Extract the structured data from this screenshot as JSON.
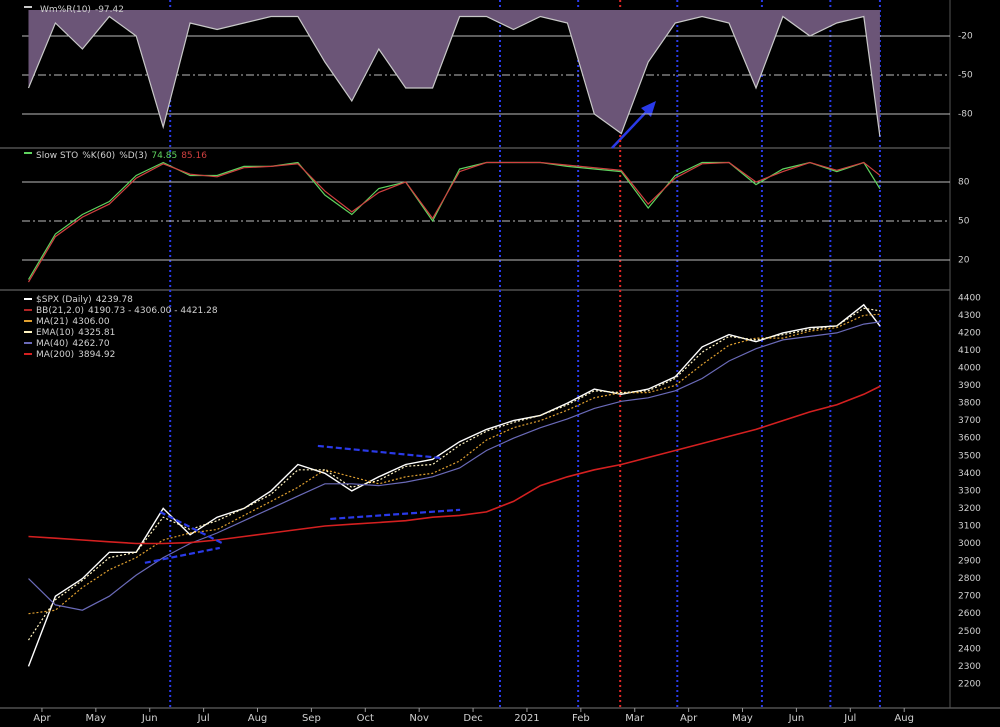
{
  "chart_data": [
    {
      "type": "line",
      "label": null,
      "x": [
        -0.25,
        0.25,
        0.75,
        1.25,
        1.75,
        2.25,
        2.75,
        3.25,
        3.75,
        4.25,
        4.75,
        5.25,
        5.75,
        6.25,
        6.75,
        7.25,
        7.75,
        8.25,
        8.75,
        9.25,
        9.75,
        10.25,
        10.75,
        11.25,
        11.75,
        12.25,
        12.75,
        13.25,
        13.75,
        14.25,
        14.75,
        15.25,
        15.55
      ],
      "series": [
        {
          "name": "Wm%R(10)",
          "color": "#c8c8c8",
          "fill": "#6b5577",
          "values": [
            -60,
            -10,
            -30,
            -5,
            -20,
            -90,
            -10,
            -15,
            -10,
            -5,
            -5,
            -40,
            -70,
            -30,
            -60,
            -60,
            -5,
            -5,
            -15,
            -5,
            -10,
            -80,
            -95,
            -40,
            -10,
            -5,
            -10,
            -60,
            -5,
            -20,
            -10,
            -5,
            -97.42
          ]
        }
      ],
      "ylim": [
        -100,
        0
      ],
      "yticks": [
        -20,
        -50,
        -80
      ],
      "grid": true,
      "grid_style": [
        "solid",
        "dashdot",
        "solid"
      ]
    },
    {
      "type": "line",
      "label": "Slow STO",
      "x": [
        -0.25,
        0.25,
        0.75,
        1.25,
        1.75,
        2.25,
        2.75,
        3.25,
        3.75,
        4.25,
        4.75,
        5.25,
        5.75,
        6.25,
        6.75,
        7.25,
        7.75,
        8.25,
        8.75,
        9.25,
        9.75,
        10.25,
        10.75,
        11.25,
        11.75,
        12.25,
        12.75,
        13.25,
        13.75,
        14.25,
        14.75,
        15.25,
        15.55
      ],
      "series": [
        {
          "name": "%K(60)",
          "color": "#5fd35f",
          "values": [
            5,
            40,
            55,
            65,
            85,
            95,
            85,
            85,
            92,
            92,
            95,
            70,
            55,
            75,
            80,
            50,
            90,
            95,
            95,
            95,
            92,
            90,
            88,
            60,
            85,
            95,
            95,
            78,
            90,
            95,
            88,
            95,
            74.85
          ]
        },
        {
          "name": "%D(3)",
          "color": "#d04040",
          "values": [
            3,
            38,
            53,
            63,
            83,
            94,
            86,
            84,
            91,
            92,
            94,
            73,
            57,
            72,
            80,
            52,
            88,
            95,
            95,
            95,
            93,
            91,
            89,
            63,
            83,
            94,
            95,
            80,
            88,
            95,
            89,
            95,
            85.16
          ]
        }
      ],
      "ylim": [
        0,
        100
      ],
      "yticks": [
        80,
        50,
        20
      ],
      "grid": true,
      "grid_style": [
        "solid",
        "dashdot",
        "solid"
      ]
    },
    {
      "type": "line",
      "label": null,
      "x": [
        -0.25,
        0.25,
        0.75,
        1.25,
        1.75,
        2.25,
        2.75,
        3.25,
        3.75,
        4.25,
        4.75,
        5.25,
        5.75,
        6.25,
        6.75,
        7.25,
        7.75,
        8.25,
        8.75,
        9.25,
        9.75,
        10.25,
        10.75,
        11.25,
        11.75,
        12.25,
        12.75,
        13.25,
        13.75,
        14.25,
        14.75,
        15.25,
        15.55
      ],
      "series": [
        {
          "name": "$SPX (Daily)",
          "color": "#ffffff",
          "width": 1.4,
          "values": [
            2300,
            2700,
            2800,
            2950,
            2950,
            3200,
            3050,
            3150,
            3200,
            3300,
            3450,
            3400,
            3300,
            3380,
            3450,
            3480,
            3580,
            3650,
            3700,
            3730,
            3800,
            3880,
            3850,
            3880,
            3950,
            4120,
            4190,
            4150,
            4200,
            4230,
            4240,
            4360,
            4239.78
          ]
        },
        {
          "name": "BB(21,2.0)",
          "color": "#b02525",
          "last_label": "4190.73 - 4306.00 - 4421.28"
        },
        {
          "name": "MA(21)",
          "color": "#e0a030",
          "style": "dotted",
          "last_label": "4306.00",
          "values": [
            2600,
            2620,
            2750,
            2850,
            2920,
            3020,
            3060,
            3080,
            3160,
            3240,
            3320,
            3420,
            3380,
            3340,
            3380,
            3400,
            3470,
            3590,
            3660,
            3700,
            3760,
            3830,
            3860,
            3860,
            3900,
            4020,
            4130,
            4170,
            4170,
            4210,
            4230,
            4300,
            4306
          ]
        },
        {
          "name": "EMA(10)",
          "color": "#fff3c0",
          "style": "dotted",
          "values": [
            2450,
            2680,
            2790,
            2920,
            2950,
            3150,
            3080,
            3130,
            3200,
            3280,
            3420,
            3420,
            3320,
            3360,
            3440,
            3450,
            3560,
            3640,
            3690,
            3730,
            3790,
            3870,
            3860,
            3870,
            3940,
            4090,
            4180,
            4160,
            4190,
            4220,
            4240,
            4340,
            4325.81
          ]
        },
        {
          "name": "MA(40)",
          "color": "#6a6ab8",
          "last_label": "4262.70",
          "values": [
            2800,
            2650,
            2620,
            2700,
            2820,
            2920,
            3000,
            3060,
            3130,
            3200,
            3270,
            3340,
            3340,
            3330,
            3350,
            3380,
            3430,
            3530,
            3600,
            3660,
            3710,
            3770,
            3810,
            3830,
            3870,
            3940,
            4040,
            4110,
            4160,
            4180,
            4200,
            4250,
            4262.7
          ]
        },
        {
          "name": "MA(200)",
          "color": "#d42020",
          "width": 1.6,
          "values": [
            3040,
            3030,
            3020,
            3010,
            3000,
            3000,
            3005,
            3020,
            3040,
            3060,
            3080,
            3100,
            3110,
            3120,
            3130,
            3150,
            3160,
            3180,
            3240,
            3330,
            3380,
            3420,
            3450,
            3490,
            3530,
            3570,
            3610,
            3650,
            3700,
            3750,
            3790,
            3850,
            3894.92
          ]
        }
      ],
      "ylim": [
        2080,
        4450
      ],
      "yticks": [
        2200,
        2300,
        2400,
        2500,
        2600,
        2700,
        2800,
        2900,
        3000,
        3100,
        3200,
        3300,
        3400,
        3500,
        3600,
        3700,
        3800,
        3900,
        4000,
        4100,
        4200,
        4300,
        4400
      ],
      "xlim": [
        -0.37,
        16.85
      ],
      "xticks": [
        {
          "value": 0,
          "label": "Apr"
        },
        {
          "value": 1,
          "label": "May"
        },
        {
          "value": 2,
          "label": "Jun"
        },
        {
          "value": 3,
          "label": "Jul"
        },
        {
          "value": 4,
          "label": "Aug"
        },
        {
          "value": 5,
          "label": "Sep"
        },
        {
          "value": 6,
          "label": "Oct"
        },
        {
          "value": 7,
          "label": "Nov"
        },
        {
          "value": 8,
          "label": "Dec"
        },
        {
          "value": 9,
          "label": "2021"
        },
        {
          "value": 10,
          "label": "Feb"
        },
        {
          "value": 11,
          "label": "Mar"
        },
        {
          "value": 12,
          "label": "Apr"
        },
        {
          "value": 13,
          "label": "May"
        },
        {
          "value": 14,
          "label": "Jun"
        },
        {
          "value": 15,
          "label": "Jul"
        },
        {
          "value": 16,
          "label": "Aug"
        }
      ],
      "vlines": [
        {
          "x": 2.38,
          "color": "#2a3ae8"
        },
        {
          "x": 8.5,
          "color": "#2a3ae8"
        },
        {
          "x": 9.95,
          "color": "#2a3ae8"
        },
        {
          "x": 10.73,
          "color": "#e02525"
        },
        {
          "x": 11.79,
          "color": "#2a3ae8"
        },
        {
          "x": 13.36,
          "color": "#2a3ae8"
        },
        {
          "x": 14.63,
          "color": "#2a3ae8"
        },
        {
          "x": 15.55,
          "color": "#2a3ae8"
        }
      ],
      "trendline_color": "#2a3ae8",
      "trendlines": [
        {
          "x": [
            2.19,
            3.34
          ],
          "y": [
            3180,
            3003
          ]
        },
        {
          "x": [
            1.91,
            3.3
          ],
          "y": [
            2890,
            2975
          ]
        },
        {
          "x": [
            5.12,
            7.39
          ],
          "y": [
            3556,
            3488
          ]
        },
        {
          "x": [
            5.35,
            7.76
          ],
          "y": [
            3140,
            3192
          ]
        }
      ]
    }
  ]
}
